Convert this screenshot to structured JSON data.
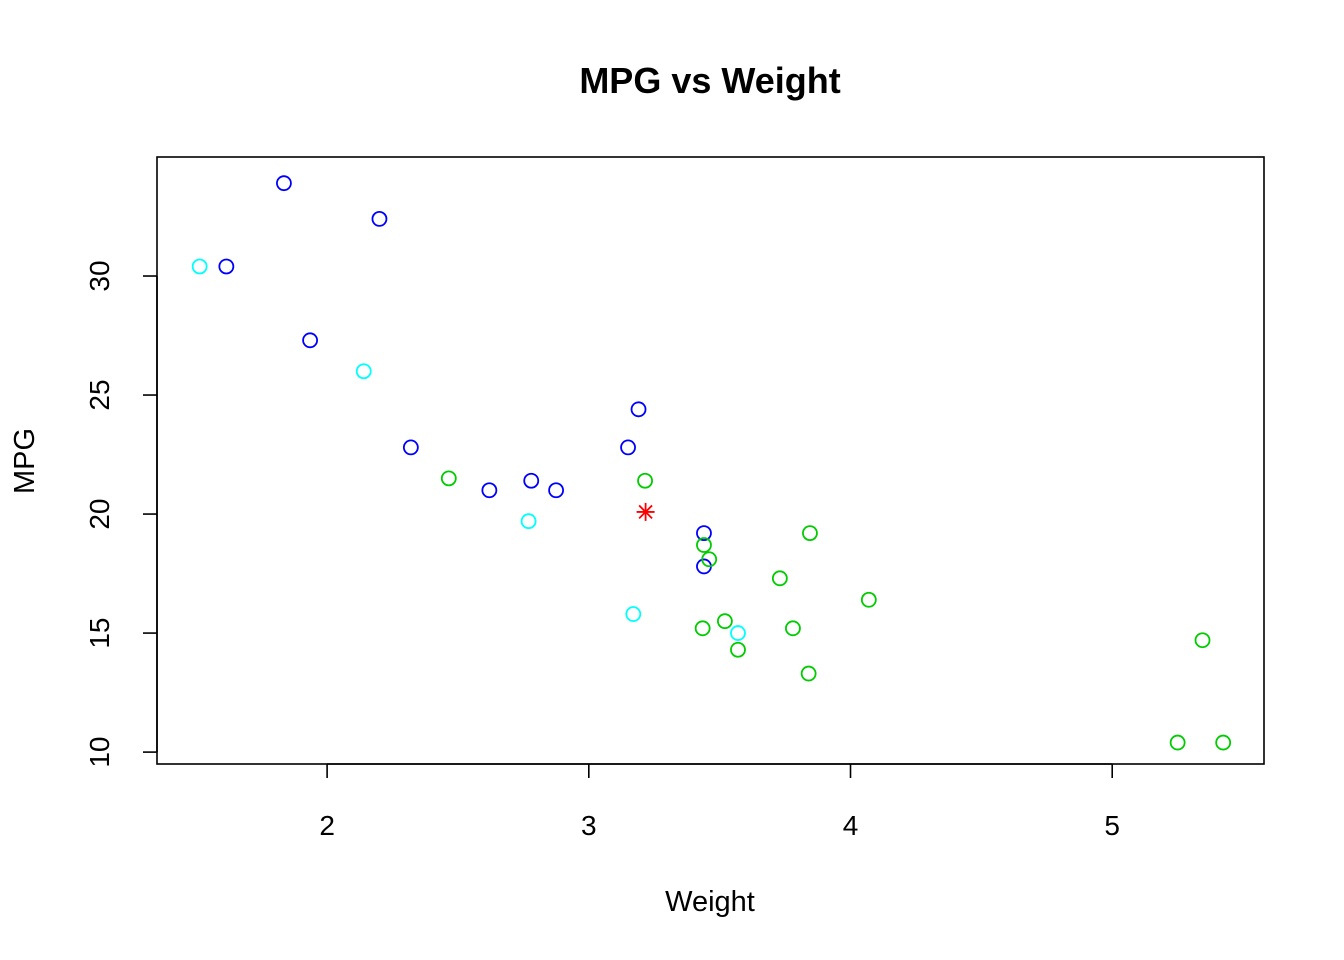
{
  "chart_data": {
    "type": "scatter",
    "title": "MPG vs Weight",
    "xlabel": "Weight",
    "ylabel": "MPG",
    "xlim": [
      1.35,
      5.58
    ],
    "ylim": [
      9.5,
      35.0
    ],
    "x_ticks": [
      "2",
      "3",
      "4",
      "5"
    ],
    "y_ticks": [
      "10",
      "15",
      "20",
      "25",
      "30"
    ],
    "grid": false,
    "legend": "none",
    "colors": {
      "blue": "#0000ff",
      "cyan": "#00ffff",
      "green": "#00cc00",
      "highlight": "#ff0000"
    },
    "series": [
      {
        "color": "#0000ff",
        "marker": "open-circle",
        "points": [
          [
            1.615,
            30.4
          ],
          [
            1.835,
            33.9
          ],
          [
            1.935,
            27.3
          ],
          [
            2.2,
            32.4
          ],
          [
            2.32,
            22.8
          ],
          [
            2.62,
            21.0
          ],
          [
            2.78,
            21.4
          ],
          [
            2.875,
            21.0
          ],
          [
            3.15,
            22.8
          ],
          [
            3.19,
            24.4
          ],
          [
            3.44,
            19.2
          ],
          [
            3.44,
            17.8
          ]
        ]
      },
      {
        "color": "#00ffff",
        "marker": "open-circle",
        "points": [
          [
            1.513,
            30.4
          ],
          [
            2.14,
            26.0
          ],
          [
            2.77,
            19.7
          ],
          [
            3.17,
            15.8
          ],
          [
            3.57,
            15.0
          ]
        ]
      },
      {
        "color": "#00cc00",
        "marker": "open-circle",
        "points": [
          [
            2.465,
            21.5
          ],
          [
            3.215,
            21.4
          ],
          [
            3.44,
            18.7
          ],
          [
            3.46,
            18.1
          ],
          [
            3.435,
            15.2
          ],
          [
            3.52,
            15.5
          ],
          [
            3.57,
            14.3
          ],
          [
            3.73,
            17.3
          ],
          [
            3.78,
            15.2
          ],
          [
            3.84,
            13.3
          ],
          [
            3.845,
            19.2
          ],
          [
            4.07,
            16.4
          ],
          [
            5.25,
            10.4
          ],
          [
            5.345,
            14.7
          ],
          [
            5.424,
            10.4
          ]
        ]
      },
      {
        "color": "#ff0000",
        "marker": "asterisk",
        "points": [
          [
            3.217,
            20.09
          ]
        ]
      }
    ]
  }
}
